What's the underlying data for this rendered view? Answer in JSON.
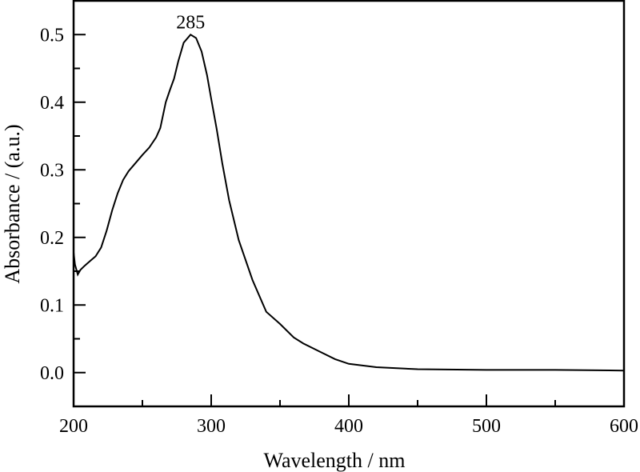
{
  "chart_data": {
    "type": "line",
    "title": "",
    "xlabel": "Wavelength / nm",
    "ylabel": "Absorbance / (a.u.)",
    "xlim": [
      200,
      600
    ],
    "ylim": [
      -0.05,
      0.55
    ],
    "xticks": [
      "200",
      "300",
      "400",
      "500",
      "600"
    ],
    "yticks": [
      "0.0",
      "0.1",
      "0.2",
      "0.3",
      "0.4",
      "0.5"
    ],
    "grid": false,
    "annotations": [
      {
        "text": "285",
        "x": 285,
        "y": 0.5
      }
    ],
    "series": [
      {
        "name": "absorbance",
        "color": "#000000",
        "x": [
          200,
          201,
          203,
          205,
          208,
          212,
          216,
          220,
          224,
          228,
          232,
          236,
          240,
          245,
          250,
          255,
          260,
          263,
          267,
          270,
          273,
          276,
          280,
          285,
          289,
          293,
          297,
          300,
          304,
          308,
          313,
          320,
          330,
          340,
          350,
          360,
          367,
          379,
          390,
          400,
          420,
          450,
          500,
          550,
          600
        ],
        "y": [
          0.178,
          0.16,
          0.145,
          0.152,
          0.158,
          0.165,
          0.172,
          0.185,
          0.21,
          0.24,
          0.265,
          0.285,
          0.298,
          0.31,
          0.322,
          0.333,
          0.348,
          0.362,
          0.4,
          0.418,
          0.435,
          0.46,
          0.488,
          0.5,
          0.495,
          0.475,
          0.44,
          0.405,
          0.36,
          0.31,
          0.255,
          0.196,
          0.137,
          0.09,
          0.072,
          0.052,
          0.043,
          0.031,
          0.02,
          0.013,
          0.008,
          0.005,
          0.004,
          0.004,
          0.003
        ]
      }
    ]
  }
}
